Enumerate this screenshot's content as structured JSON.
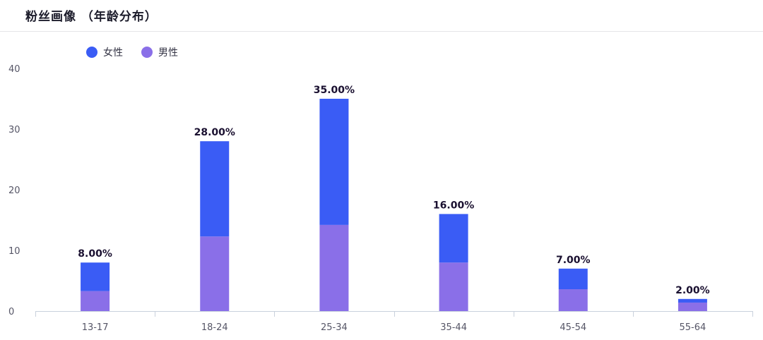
{
  "header": {
    "title": "粉丝画像 （年龄分布）"
  },
  "legend": [
    {
      "name": "女性",
      "color": "#3a5cf5"
    },
    {
      "name": "男性",
      "color": "#8a6fe8"
    }
  ],
  "chart_data": {
    "type": "bar",
    "stacked": true,
    "categories": [
      "13-17",
      "18-24",
      "25-34",
      "35-44",
      "45-54",
      "55-64"
    ],
    "series": [
      {
        "name": "男性",
        "color": "#8a6fe8",
        "values": [
          3.3,
          12.3,
          14.2,
          8.0,
          3.6,
          1.4
        ]
      },
      {
        "name": "女性",
        "color": "#3a5cf5",
        "values": [
          4.7,
          15.7,
          20.8,
          8.0,
          3.4,
          0.6
        ]
      }
    ],
    "data_labels": [
      "8.00%",
      "28.00%",
      "35.00%",
      "16.00%",
      "7.00%",
      "2.00%"
    ],
    "y_ticks": [
      0,
      10,
      20,
      30,
      40
    ],
    "ylim": [
      0,
      40
    ],
    "grid": false,
    "legend_position": "top-left",
    "axis_color": "#c9d1dc"
  }
}
